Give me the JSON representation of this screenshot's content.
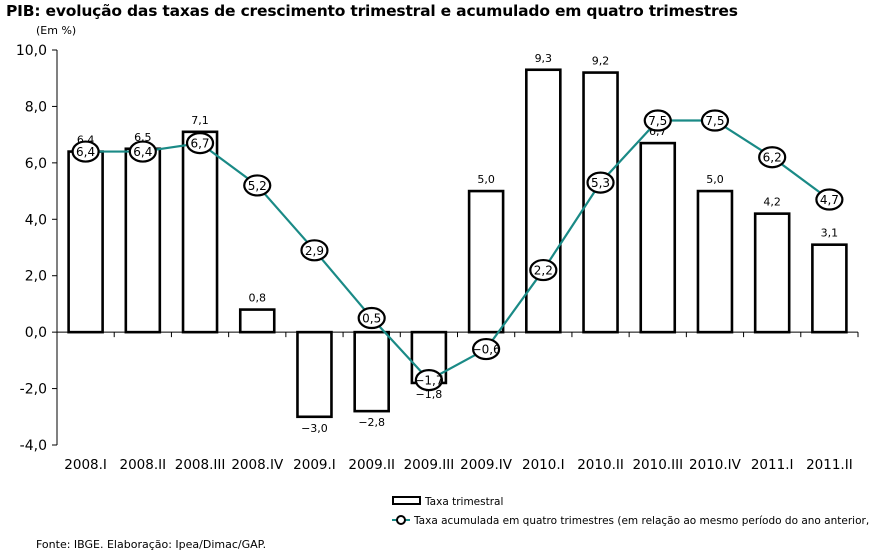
{
  "title": "PIB: evolução das taxas de crescimento trimestral e acumulado em quatro trimestres",
  "unit": "(Em %)",
  "source": "Fonte: IBGE. Elaboração: Ipea/Dimac/GAP.",
  "chart_data": {
    "type": "bar",
    "categories": [
      "2008.I",
      "2008.II",
      "2008.III",
      "2008.IV",
      "2009.I",
      "2009.II",
      "2009.III",
      "2009.IV",
      "2010.I",
      "2010.II",
      "2010.III",
      "2010.IV",
      "2011.I",
      "2011.II"
    ],
    "ylim": [
      -4,
      10
    ],
    "yticks": [
      "-4,0",
      "-2,0",
      "0,0",
      "2,0",
      "4,0",
      "6,0",
      "8,0",
      "10,0"
    ],
    "ytick_values": [
      -4,
      -2,
      0,
      2,
      4,
      6,
      8,
      10
    ],
    "grid": false,
    "legend_position": "bottom",
    "series": [
      {
        "name": "Taxa trimestral",
        "kind": "bar",
        "values": [
          6.4,
          6.5,
          7.1,
          0.8,
          -3.0,
          -2.8,
          -1.8,
          5.0,
          9.3,
          9.2,
          6.7,
          5.0,
          4.2,
          3.1
        ],
        "labels": [
          "6,4",
          "6,5",
          "7,1",
          "0,8",
          "−3,0",
          "−2,8",
          "−1,8",
          "5,0",
          "9,3",
          "9,2",
          "6,7",
          "5,0",
          "4,2",
          "3,1"
        ]
      },
      {
        "name": "Taxa acumulada em quatro trimestres (em relação ao  mesmo período do ano anterior, em %)",
        "kind": "line",
        "color": "#1a8a86",
        "values": [
          6.4,
          6.4,
          6.7,
          5.2,
          2.9,
          0.5,
          -1.7,
          -0.6,
          2.2,
          5.3,
          7.5,
          7.5,
          6.2,
          4.7
        ],
        "labels": [
          "6,4",
          "6,4",
          "6,7",
          "5,2",
          "2,9",
          "0,5",
          "−1,7",
          "−0,6",
          "2,2",
          "5,3",
          "7,5",
          "7,5",
          "6,2",
          "4,7"
        ]
      }
    ]
  }
}
